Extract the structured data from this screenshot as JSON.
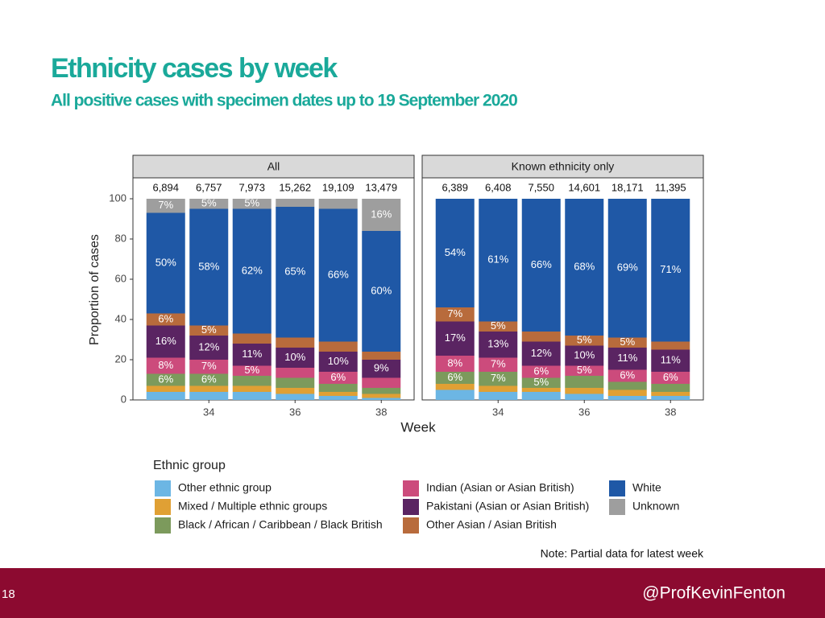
{
  "slide": {
    "number": "18",
    "handle": "@ProfKevinFenton"
  },
  "chart_data": {
    "type": "bar",
    "stacked": true,
    "title": "Ethnicity cases by week",
    "subtitle": "All positive cases with specimen dates up to 19 September 2020",
    "ylabel": "Proportion of cases",
    "xlabel": "Week",
    "legend_title": "Ethnic group",
    "note": "Note: Partial data for latest week",
    "ylim": [
      0,
      100
    ],
    "yticks": [
      0,
      20,
      40,
      60,
      80,
      100
    ],
    "categories": [
      null,
      "34",
      null,
      "36",
      null,
      "38"
    ],
    "facets": [
      {
        "title": "All",
        "totals": [
          "6,894",
          "6,757",
          "7,973",
          "15,262",
          "19,109",
          "13,479"
        ]
      },
      {
        "title": "Known ethnicity only",
        "totals": [
          "6,389",
          "6,408",
          "7,550",
          "14,601",
          "18,171",
          "11,395"
        ]
      }
    ],
    "series": [
      {
        "name": "Other ethnic group",
        "color": "#6cb6e4",
        "values": [
          [
            4,
            4,
            4,
            3,
            2,
            1
          ],
          [
            5,
            4,
            4,
            3,
            2,
            2
          ]
        ],
        "value_labels": [
          [
            null,
            null,
            null,
            null,
            null,
            null
          ],
          [
            null,
            null,
            null,
            null,
            null,
            null
          ]
        ]
      },
      {
        "name": "Mixed / Multiple ethnic groups",
        "color": "#e0a034",
        "values": [
          [
            3,
            3,
            3,
            3,
            2,
            2
          ],
          [
            3,
            3,
            2,
            3,
            3,
            2
          ]
        ],
        "value_labels": [
          [
            null,
            null,
            null,
            null,
            null,
            null
          ],
          [
            null,
            null,
            null,
            null,
            null,
            null
          ]
        ]
      },
      {
        "name": "Black / African / Caribbean / Black British",
        "color": "#7c9a5c",
        "values": [
          [
            6,
            6,
            5,
            5,
            4,
            3
          ],
          [
            6,
            7,
            5,
            6,
            4,
            4
          ]
        ],
        "value_labels": [
          [
            "6%",
            "6%",
            null,
            null,
            null,
            null
          ],
          [
            "6%",
            "7%",
            "5%",
            null,
            null,
            null
          ]
        ]
      },
      {
        "name": "Indian (Asian or Asian British)",
        "color": "#cc4b7c",
        "values": [
          [
            8,
            7,
            5,
            5,
            6,
            5
          ],
          [
            8,
            7,
            6,
            5,
            6,
            6
          ]
        ],
        "value_labels": [
          [
            "8%",
            "7%",
            "5%",
            null,
            "6%",
            null
          ],
          [
            "8%",
            "7%",
            "6%",
            "5%",
            "6%",
            "6%"
          ]
        ]
      },
      {
        "name": "Pakistani (Asian or Asian British)",
        "color": "#5a2462",
        "values": [
          [
            16,
            12,
            11,
            10,
            10,
            9
          ],
          [
            17,
            13,
            12,
            10,
            11,
            11
          ]
        ],
        "value_labels": [
          [
            "16%",
            "12%",
            "11%",
            "10%",
            "10%",
            "9%"
          ],
          [
            "17%",
            "13%",
            "12%",
            "10%",
            "11%",
            "11%"
          ]
        ]
      },
      {
        "name": "Other Asian / Asian British",
        "color": "#b86b3c",
        "values": [
          [
            6,
            5,
            5,
            5,
            5,
            4
          ],
          [
            7,
            5,
            5,
            5,
            5,
            4
          ]
        ],
        "value_labels": [
          [
            "6%",
            "5%",
            null,
            null,
            null,
            null
          ],
          [
            "7%",
            "5%",
            null,
            "5%",
            "5%",
            null
          ]
        ]
      },
      {
        "name": "White",
        "color": "#1f58a6",
        "values": [
          [
            50,
            58,
            62,
            65,
            66,
            60
          ],
          [
            54,
            61,
            66,
            68,
            69,
            71
          ]
        ],
        "value_labels": [
          [
            "50%",
            "58%",
            "62%",
            "65%",
            "66%",
            "60%"
          ],
          [
            "54%",
            "61%",
            "66%",
            "68%",
            "69%",
            "71%"
          ]
        ]
      },
      {
        "name": "Unknown",
        "color": "#9e9e9e",
        "values": [
          [
            7,
            5,
            5,
            4,
            5,
            16
          ],
          [
            null,
            null,
            null,
            null,
            null,
            null
          ]
        ],
        "value_labels": [
          [
            "7%",
            "5%",
            "5%",
            null,
            null,
            "16%"
          ],
          [
            null,
            null,
            null,
            null,
            null,
            null
          ]
        ]
      }
    ]
  }
}
